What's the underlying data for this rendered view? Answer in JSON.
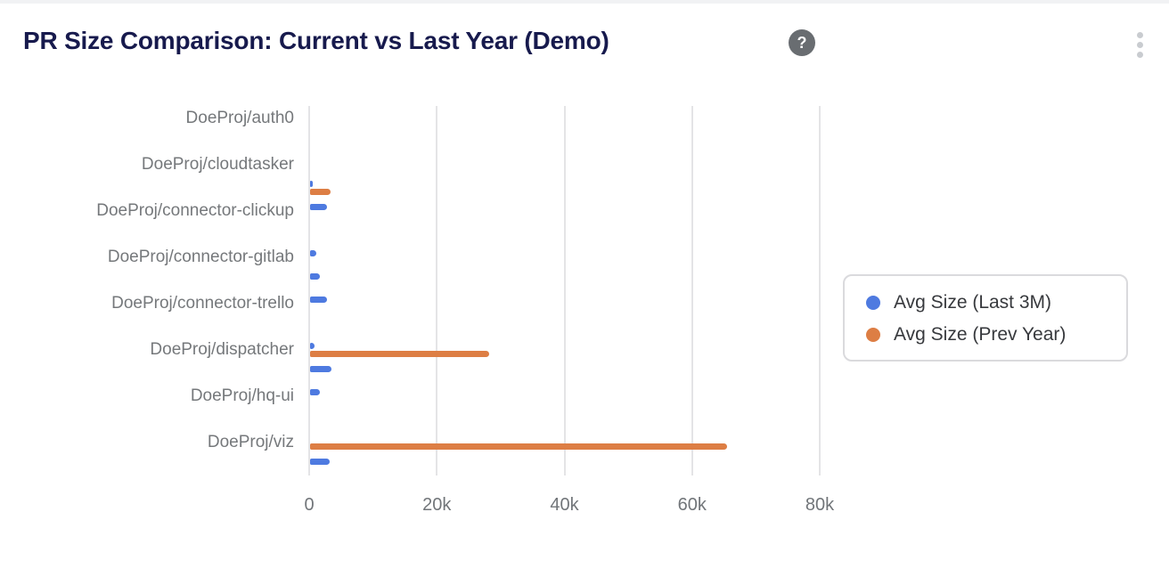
{
  "header": {
    "title": "PR Size Comparison: Current vs Last Year (Demo)",
    "help_glyph": "?"
  },
  "colors": {
    "series_blue": "#4E7AE0",
    "series_orange": "#DD7E44",
    "title_text": "#171A4D",
    "axis_text": "#717579",
    "category_text": "#75787B",
    "gridline": "#E4E4E6",
    "legend_border": "#DADADD",
    "legend_text": "#37393D",
    "help_icon_bg": "#696D71",
    "menu_dots": "#C9CCD0"
  },
  "legend": {
    "position": "right",
    "items": [
      {
        "label": "Avg Size (Last 3M)",
        "color": "#4E7AE0"
      },
      {
        "label": "Avg Size (Prev Year)",
        "color": "#DD7E44"
      }
    ]
  },
  "chart_data": {
    "type": "bar",
    "orientation": "horizontal",
    "title": "PR Size Comparison: Current vs Last Year (Demo)",
    "x_axis": {
      "tick_labels": [
        "0",
        "20k",
        "40k",
        "60k",
        "80k"
      ],
      "tick_values": [
        0,
        20000,
        40000,
        60000,
        80000
      ],
      "range": [
        0,
        80000
      ],
      "grid": true
    },
    "y_axis": {
      "note": "16 rows; category labels auto-thinned, shown only on every other row",
      "label_color": "#75787B"
    },
    "categories": [
      "DoeProj/auth0",
      "",
      "DoeProj/cloudtasker",
      "",
      "DoeProj/connector-clickup",
      "",
      "DoeProj/connector-gitlab",
      "",
      "DoeProj/connector-trello",
      "",
      "DoeProj/dispatcher",
      "",
      "DoeProj/hq-ui",
      "",
      "DoeProj/viz",
      ""
    ],
    "series": [
      {
        "name": "Avg Size (Last 3M)",
        "color": "#4E7AE0",
        "values": [
          0,
          0,
          0,
          400,
          2650,
          0,
          1000,
          1500,
          2650,
          0,
          650,
          3350,
          1500,
          0,
          0,
          3100
        ]
      },
      {
        "name": "Avg Size (Prev Year)",
        "color": "#DD7E44",
        "values": [
          0,
          0,
          0,
          3200,
          0,
          0,
          0,
          0,
          0,
          0,
          28000,
          0,
          0,
          0,
          65400,
          0
        ]
      }
    ],
    "legend_position": "right"
  }
}
